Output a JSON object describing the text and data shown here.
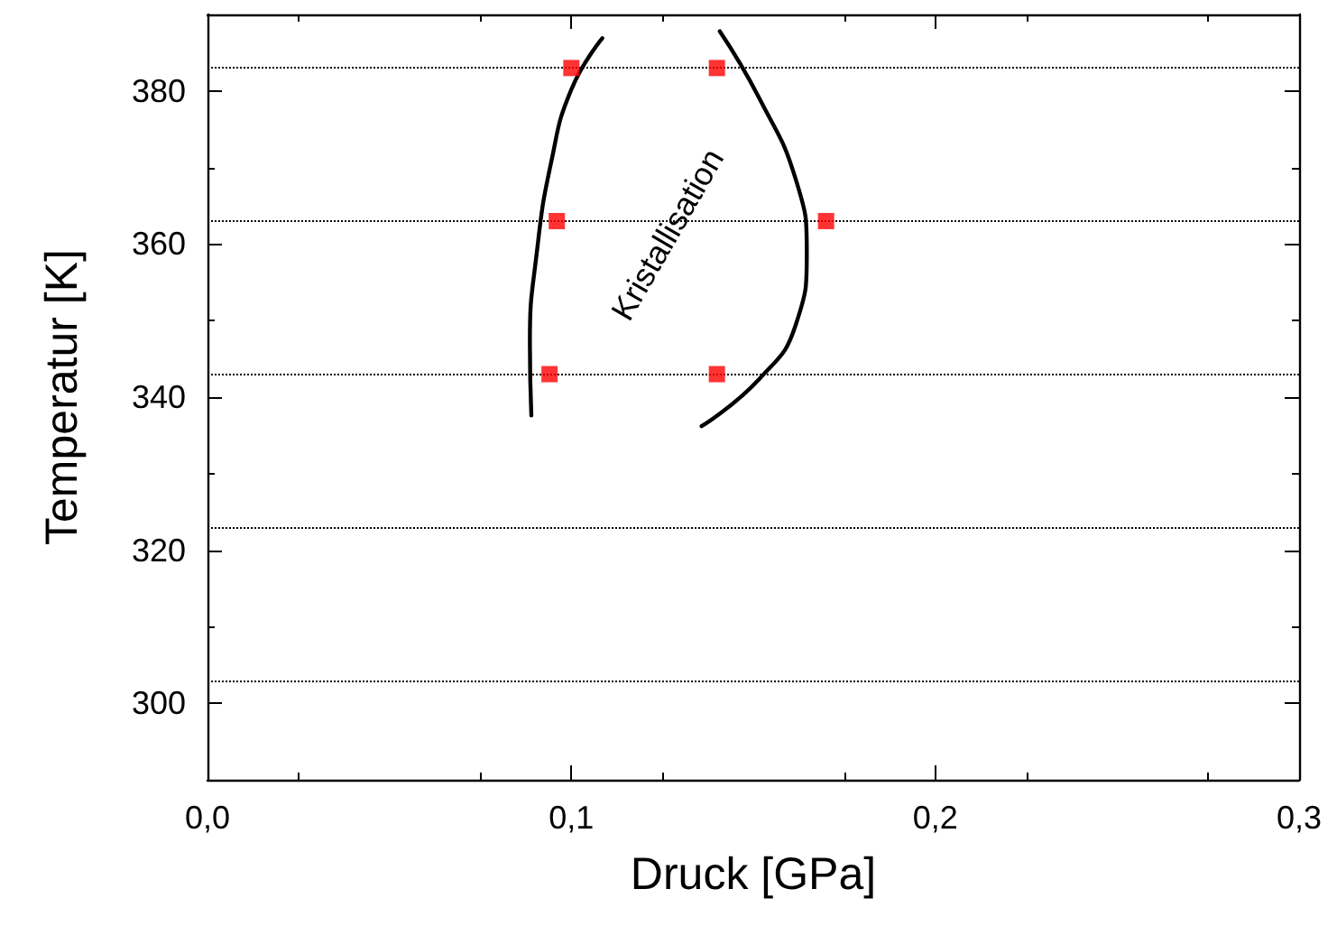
{
  "chart_data": {
    "type": "scatter",
    "xlabel": "Druck [GPa]",
    "ylabel": "Temperatur [K]",
    "xlim": [
      0,
      0.3
    ],
    "ylim": [
      290,
      390
    ],
    "xticks": [
      {
        "value": 0,
        "label": "0,0"
      },
      {
        "value": 0.1,
        "label": "0,1"
      },
      {
        "value": 0.2,
        "label": "0,2"
      },
      {
        "value": 0.3,
        "label": "0,3"
      }
    ],
    "yticks": [
      300,
      320,
      340,
      360,
      380
    ],
    "grid": false,
    "series": [
      {
        "color": "#ff0000",
        "marker": "square",
        "x": [
          0.1,
          0.14,
          0.096,
          0.17,
          0.094,
          0.14
        ],
        "values": [
          383,
          383,
          363,
          363,
          343,
          343
        ]
      },
      {
        "type": "line",
        "color": "#000000",
        "marker": "none",
        "line_style": "solid",
        "x": [
          0.1085,
          0.1,
          0.0945,
          0.0905,
          0.0886,
          0.089
        ],
        "values": [
          386.9,
          380.2,
          370.8,
          358.9,
          347.1,
          337.6
        ]
      },
      {
        "type": "line",
        "color": "#000000",
        "marker": "none",
        "line_style": "solid",
        "x": [
          0.1408,
          0.1517,
          0.1617,
          0.1647,
          0.1617,
          0.1517,
          0.1358
        ],
        "values": [
          387.8,
          379,
          368.4,
          358.9,
          349.5,
          342.4,
          336.2
        ]
      }
    ],
    "ref_lines": [
      {
        "axis": "y",
        "value": 303,
        "color": "#000000",
        "line_style": "dotted"
      },
      {
        "axis": "y",
        "value": 323,
        "color": "#000000",
        "line_style": "dotted"
      },
      {
        "axis": "y",
        "value": 343,
        "color": "#000000",
        "line_style": "dotted"
      },
      {
        "axis": "y",
        "value": 363,
        "color": "#000000",
        "line_style": "dotted"
      },
      {
        "axis": "y",
        "value": 383,
        "color": "#000000",
        "line_style": "dotted"
      }
    ],
    "annotations": [
      "Kristallisation"
    ]
  }
}
